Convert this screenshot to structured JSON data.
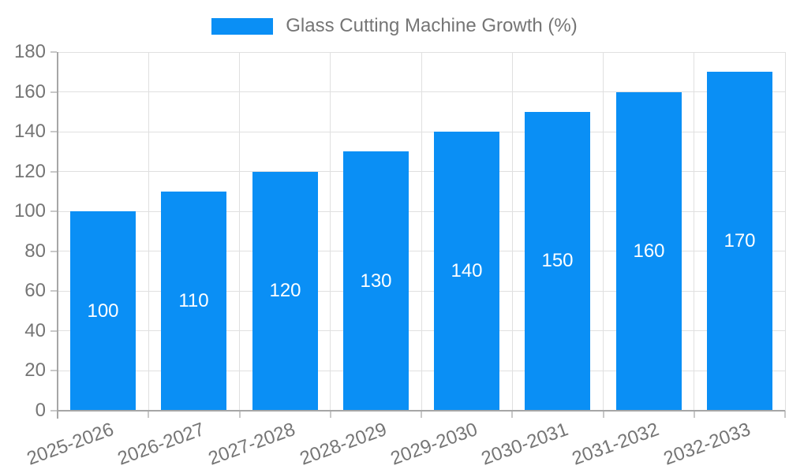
{
  "chart_data": {
    "type": "bar",
    "title": "Glass Cutting Machine Growth (%)",
    "categories": [
      "2025-2026",
      "2026-2027",
      "2027-2028",
      "2028-2029",
      "2029-2030",
      "2030-2031",
      "2031-2032",
      "2032-2033"
    ],
    "values": [
      100,
      110,
      120,
      130,
      140,
      150,
      160,
      170
    ],
    "xlabel": "",
    "ylabel": "",
    "ylim": [
      0,
      180
    ],
    "ytick_step": 20,
    "yticks": [
      0,
      20,
      40,
      60,
      80,
      100,
      120,
      140,
      160,
      180
    ],
    "grid": true,
    "legend_position": "top",
    "bar_color": "#0a8ff5",
    "bar_label_color": "#ffffff",
    "axis_text_color": "#757575",
    "axis_line_color": "#a6a6a6",
    "gridline_color": "#e0e0e0",
    "x_label_rotation_deg": -20
  },
  "legend": {
    "label": "Glass Cutting Machine Growth (%)",
    "swatch_color": "#0a8ff5"
  }
}
